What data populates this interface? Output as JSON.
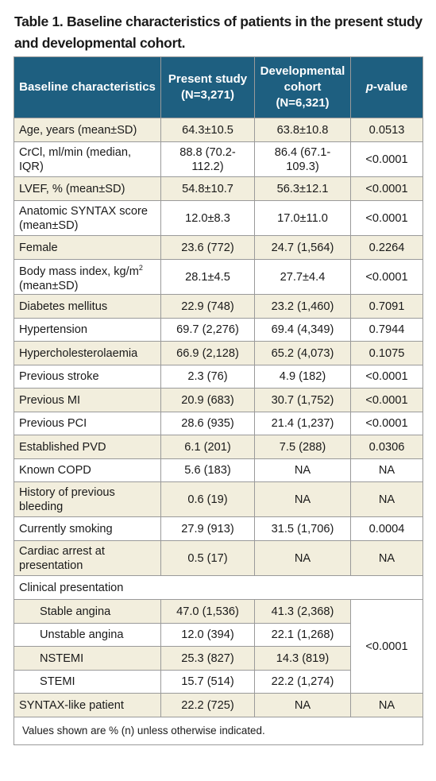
{
  "caption": "Table 1. Baseline characteristics of patients in the present study and developmental cohort.",
  "headers": {
    "col1": "Baseline characteristics",
    "col2": "Present study (N=3,271)",
    "col3": "Developmental cohort (N=6,321)",
    "col4_italic": "p",
    "col4_rest": "-value"
  },
  "rows": [
    {
      "label": "Age, years (mean±SD)",
      "present": "64.3±10.5",
      "dev": "63.8±10.8",
      "p": "0.0513"
    },
    {
      "label": "CrCl, ml/min (median, IQR)",
      "present": "88.8 (70.2-112.2)",
      "dev": "86.4 (67.1-109.3)",
      "p": "<0.0001"
    },
    {
      "label": "LVEF, % (mean±SD)",
      "present": "54.8±10.7",
      "dev": "56.3±12.1",
      "p": "<0.0001"
    },
    {
      "label": "Anatomic SYNTAX score (mean±SD)",
      "present": "12.0±8.3",
      "dev": "17.0±11.0",
      "p": "<0.0001"
    },
    {
      "label": "Female",
      "present": "23.6 (772)",
      "dev": "24.7 (1,564)",
      "p": "0.2264"
    },
    {
      "label_a": "Body mass index, kg/m",
      "label_sup": "2",
      "label_b": "(mean±SD)",
      "present": "28.1±4.5",
      "dev": "27.7±4.4",
      "p": "<0.0001"
    },
    {
      "label": "Diabetes mellitus",
      "present": "22.9 (748)",
      "dev": "23.2 (1,460)",
      "p": "0.7091"
    },
    {
      "label": "Hypertension",
      "present": "69.7 (2,276)",
      "dev": "69.4 (4,349)",
      "p": "0.7944"
    },
    {
      "label": "Hypercholesterolaemia",
      "present": "66.9 (2,128)",
      "dev": "65.2 (4,073)",
      "p": "0.1075"
    },
    {
      "label": "Previous stroke",
      "present": "2.3 (76)",
      "dev": "4.9 (182)",
      "p": "<0.0001"
    },
    {
      "label": "Previous MI",
      "present": "20.9 (683)",
      "dev": "30.7 (1,752)",
      "p": "<0.0001"
    },
    {
      "label": "Previous PCI",
      "present": "28.6 (935)",
      "dev": "21.4 (1,237)",
      "p": "<0.0001"
    },
    {
      "label": "Established PVD",
      "present": "6.1 (201)",
      "dev": "7.5 (288)",
      "p": "0.0306"
    },
    {
      "label": "Known COPD",
      "present": "5.6 (183)",
      "dev": "NA",
      "p": "NA"
    },
    {
      "label": "History of previous bleeding",
      "present": "0.6 (19)",
      "dev": "NA",
      "p": "NA"
    },
    {
      "label": "Currently smoking",
      "present": "27.9 (913)",
      "dev": "31.5 (1,706)",
      "p": "0.0004"
    },
    {
      "label": "Cardiac arrest at presentation",
      "present": "0.5 (17)",
      "dev": "NA",
      "p": "NA"
    },
    {
      "label": "Clinical presentation"
    },
    {
      "label": "Stable angina",
      "present": "47.0 (1,536)",
      "dev": "41.3 (2,368)",
      "p": "<0.0001"
    },
    {
      "label": "Unstable angina",
      "present": "12.0 (394)",
      "dev": "22.1 (1,268)"
    },
    {
      "label": "NSTEMI",
      "present": "25.3 (827)",
      "dev": "14.3 (819)"
    },
    {
      "label": "STEMI",
      "present": "15.7 (514)",
      "dev": "22.2 (1,274)"
    },
    {
      "label": "SYNTAX-like patient",
      "present": "22.2 (725)",
      "dev": "NA",
      "p": "NA"
    }
  ],
  "footnote": "Values shown are % (n) unless otherwise indicated.",
  "colors": {
    "header_bg": "#1e5f80",
    "alt_row_bg": "#f2eedd",
    "border": "#9a9a9a"
  }
}
